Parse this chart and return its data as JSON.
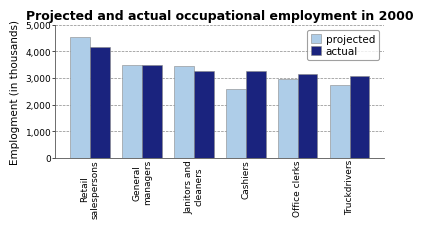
{
  "title": "Projected and actual occupational employment in 2000",
  "categories": [
    "Retail\nsalespersons",
    "General\nmanagers",
    "Janitors and\ncleaners",
    "Cashiers",
    "Office clerks",
    "Truckdrivers"
  ],
  "projected": [
    4540,
    3475,
    3450,
    2570,
    2950,
    2740
  ],
  "actual": [
    4175,
    3500,
    3260,
    3260,
    3150,
    3060
  ],
  "projected_color": "#aecde8",
  "actual_color": "#1a237e",
  "ylabel": "Emplogment (in thousands)",
  "ylim": [
    0,
    5000
  ],
  "yticks": [
    0,
    1000,
    2000,
    3000,
    4000,
    5000
  ],
  "ytick_labels": [
    "0",
    "1,000",
    "2,000",
    "3,000",
    "4,000",
    "5,000"
  ],
  "legend_labels": [
    "projected",
    "actual"
  ],
  "bar_width": 0.38,
  "title_fontsize": 9,
  "tick_fontsize": 6.5,
  "ylabel_fontsize": 7.5,
  "legend_fontsize": 7.5,
  "background_color": "#ffffff",
  "grid_color": "#888888"
}
